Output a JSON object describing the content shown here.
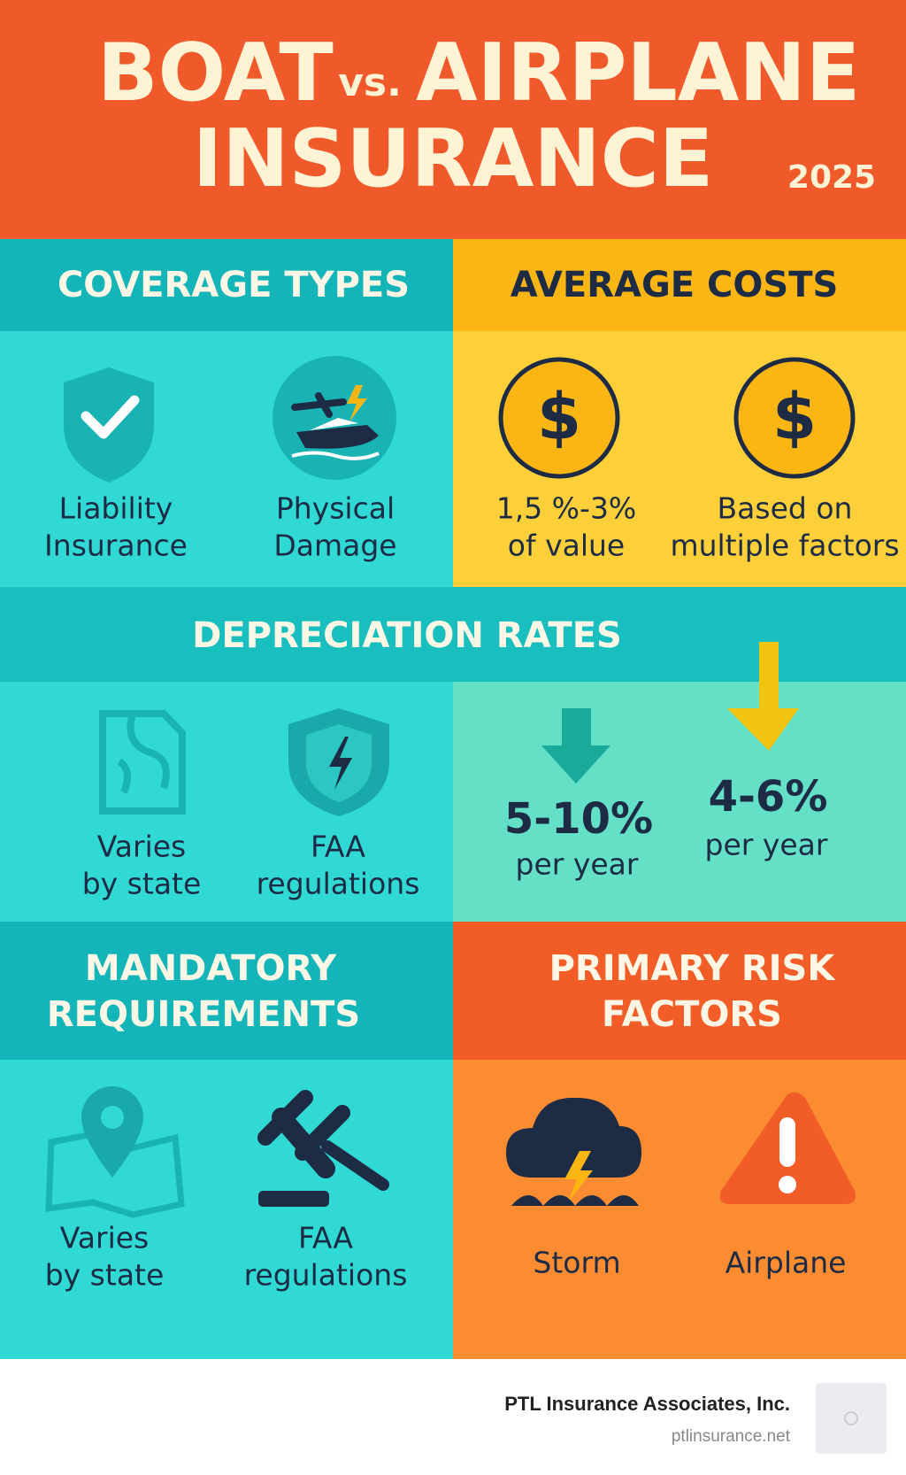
{
  "header": {
    "title": [
      "BOAT",
      "vs.",
      "AIRPLANE",
      "INSURANCE"
    ],
    "year": "2025"
  },
  "coverage_types": {
    "title": "COVERAGE TYPES",
    "items": [
      {
        "label": [
          "Liability",
          "Insurance"
        ]
      },
      {
        "label": [
          "Physical",
          "Damage"
        ]
      }
    ]
  },
  "average_costs": {
    "title": "AVERAGE COSTS",
    "items": [
      {
        "label": [
          "1,5 %-3%",
          "of value"
        ]
      },
      {
        "label": [
          "Based on",
          "multiple factors"
        ]
      }
    ]
  },
  "depreciation_rates": {
    "title": "DEPRECIATION RATES",
    "items": [
      {
        "label": [
          "Varies",
          "by state"
        ]
      },
      {
        "label": [
          "FAA",
          "regulations"
        ]
      },
      {
        "label": [
          "5-10%",
          "per year"
        ]
      },
      {
        "label": [
          "4-6%",
          "per year"
        ]
      }
    ]
  },
  "mandatory_requirements": {
    "title": [
      "MANDATORY",
      "REQUIREMENTS"
    ],
    "items": [
      {
        "label": [
          "Varies",
          "by state"
        ]
      },
      {
        "label": [
          "FAA",
          "regulations"
        ]
      }
    ]
  },
  "primary_risk_factors": {
    "title": [
      "PRIMARY RISK",
      "FACTORS"
    ],
    "items": [
      {
        "label": "Storm"
      },
      {
        "label": "Airplane"
      }
    ]
  },
  "footer": {
    "company": "PTL Insurance Associates, Inc.",
    "website": "ptlinsurance.net"
  }
}
